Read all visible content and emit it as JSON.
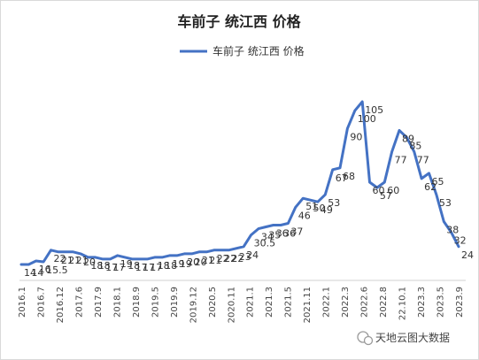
{
  "chart_data": {
    "type": "line",
    "title": "车前子 统江西 价格",
    "legend": {
      "position": "top-center",
      "entries": [
        "车前子 统江西 价格"
      ]
    },
    "xlabel": "",
    "ylabel": "",
    "grid": false,
    "series_color": "#4472C4",
    "x_ticks": [
      "2016.1",
      "2016.7",
      "2016.12",
      "2017.6",
      "2017.9",
      "2018.1",
      "2018.9",
      "2019.5",
      "2019.9",
      "2019.12",
      "2020.5",
      "2020.11",
      "2021.1",
      "2021.3",
      "2021.5",
      "2021.11",
      "2022.1",
      "2022.3",
      "2022.6",
      "2022.8",
      "22.10.1",
      "2023.3",
      "2023.5",
      "2023.9"
    ],
    "series": [
      {
        "name": "车前子 统江西 价格",
        "values": [
          14,
          14,
          16,
          15.5,
          22,
          21,
          21,
          21,
          20,
          18,
          18,
          17,
          17,
          19,
          18,
          17,
          17,
          17,
          18,
          18,
          19,
          19,
          20,
          20,
          21,
          21,
          22,
          22,
          22,
          23,
          24,
          30.5,
          34,
          35,
          36,
          36,
          37,
          46,
          51,
          50,
          49,
          53,
          67,
          68,
          90,
          100,
          105,
          60,
          57,
          60,
          77,
          89,
          85,
          77,
          62,
          65,
          53,
          38,
          32,
          24
        ],
        "data_labels": [
          "14",
          "14",
          "16",
          "15.5",
          "22",
          "21",
          "21",
          "21",
          "20",
          "18",
          "18",
          "17",
          "17",
          "19",
          "18",
          "17",
          "17",
          "17",
          "18",
          "18",
          "19",
          "19",
          "20",
          "20",
          "21",
          "21",
          "22",
          "22",
          "22",
          "23",
          "24",
          "30.5",
          "34",
          "35",
          "36",
          "36",
          "37",
          "46",
          "51",
          "50",
          "49",
          "53",
          "67",
          "68",
          "90",
          "100",
          "105",
          "60",
          "57",
          "60",
          "77",
          "89",
          "85",
          "77",
          "62",
          "65",
          "53",
          "38",
          "32",
          "24"
        ]
      }
    ]
  },
  "watermark": {
    "icon": "wechat-icon",
    "text": "天地云图大数据"
  }
}
